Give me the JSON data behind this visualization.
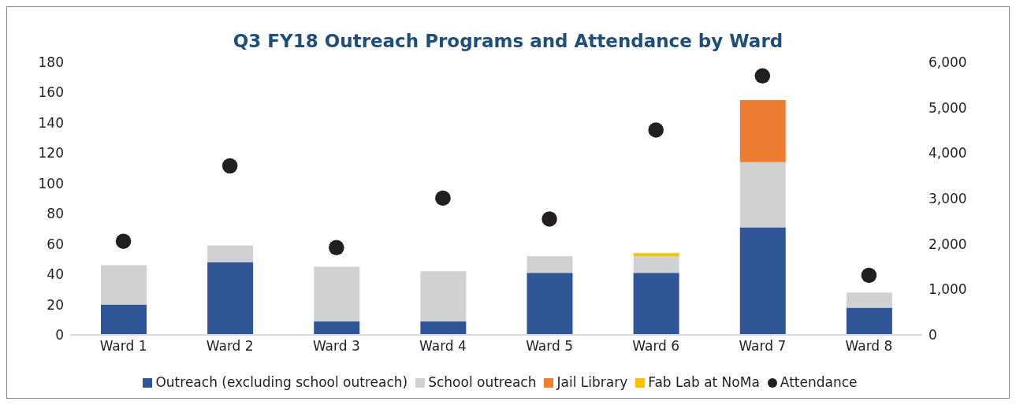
{
  "chart_data": {
    "type": "bar",
    "title": "Q3 FY18 Outreach Programs and Attendance by Ward",
    "categories": [
      "Ward 1",
      "Ward 2",
      "Ward 3",
      "Ward 4",
      "Ward 5",
      "Ward 6",
      "Ward 7",
      "Ward 8"
    ],
    "stacked": true,
    "ylim": [
      0,
      180
    ],
    "yticks": [
      0,
      20,
      40,
      60,
      80,
      100,
      120,
      140,
      160,
      180
    ],
    "y2lim": [
      0,
      6000
    ],
    "y2ticks": [
      {
        "value": 0,
        "label": "0"
      },
      {
        "value": 1000,
        "label": "1,000"
      },
      {
        "value": 2000,
        "label": "2,000"
      },
      {
        "value": 3000,
        "label": "3,000"
      },
      {
        "value": 4000,
        "label": "4,000"
      },
      {
        "value": 5000,
        "label": "5,000"
      },
      {
        "value": 6000,
        "label": "6,000"
      }
    ],
    "grid": false,
    "legend": "bottom",
    "series": [
      {
        "name": "Outreach (excluding school outreach)",
        "color": "#2f5597",
        "values": [
          20,
          48,
          9,
          9,
          41,
          41,
          71,
          18
        ]
      },
      {
        "name": "School outreach",
        "color": "#d0d1d3",
        "values": [
          26,
          11,
          36,
          33,
          11,
          11,
          43,
          10
        ]
      },
      {
        "name": "Jail Library",
        "color": "#ed7d31",
        "values": [
          0,
          0,
          0,
          0,
          0,
          0,
          41,
          0
        ]
      },
      {
        "name": "Fab Lab at NoMa",
        "color": "#ffc000",
        "values": [
          0,
          0,
          0,
          0,
          0,
          2,
          0,
          0
        ]
      },
      {
        "name": "Attendance",
        "type": "scatter",
        "axis": "y2",
        "marker": "circle",
        "color": "#231f20",
        "values": [
          2060,
          3720,
          1920,
          3010,
          2550,
          4510,
          5700,
          1310
        ]
      }
    ]
  }
}
